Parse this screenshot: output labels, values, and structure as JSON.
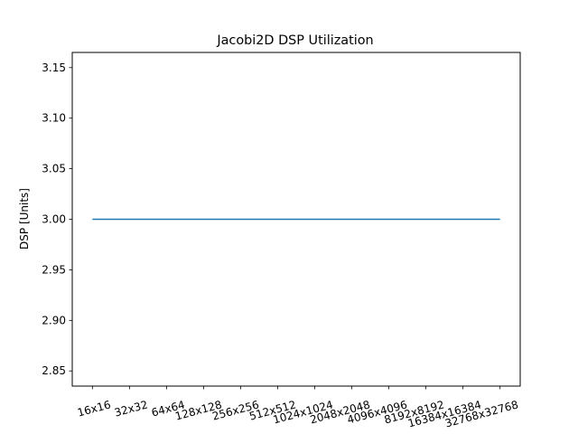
{
  "chart_data": {
    "type": "line",
    "title": "Jacobi2D DSP Utilization",
    "xlabel": "",
    "ylabel": "DSP [Units]",
    "categories": [
      "16x16",
      "32x32",
      "64x64",
      "128x128",
      "256x256",
      "512x512",
      "1024x1024",
      "2048x2048",
      "4096x4096",
      "8192x8192",
      "16384x16384",
      "32768x32768"
    ],
    "series": [
      {
        "values": [
          3,
          3,
          3,
          3,
          3,
          3,
          3,
          3,
          3,
          3,
          3,
          3
        ],
        "color": "#1f77b4"
      }
    ],
    "yticks": [
      "2.85",
      "2.90",
      "2.95",
      "3.00",
      "3.05",
      "3.10",
      "3.15"
    ],
    "ylim": [
      2.835,
      3.165
    ],
    "grid": false,
    "xtick_rotation_deg": 15
  }
}
